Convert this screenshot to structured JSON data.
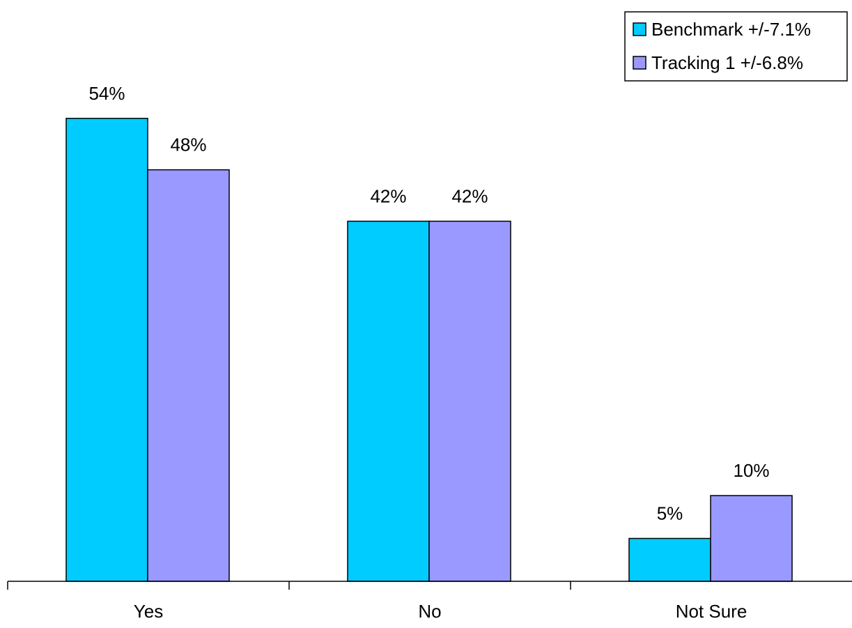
{
  "chart_data": {
    "type": "bar",
    "categories": [
      "Yes",
      "No",
      "Not Sure"
    ],
    "series": [
      {
        "name": "Benchmark +/-7.1%",
        "values": [
          54,
          42,
          5
        ],
        "labels": [
          "54%",
          "42%",
          "5%"
        ],
        "color": "#00ccff"
      },
      {
        "name": "Tracking 1 +/-6.8%",
        "values": [
          48,
          42,
          10
        ],
        "labels": [
          "48%",
          "42%",
          "10%"
        ],
        "color": "#9999ff"
      }
    ],
    "ylim": [
      0,
      60
    ],
    "grid": false,
    "legend": "top-right",
    "title": "",
    "xlabel": "",
    "ylabel": ""
  }
}
